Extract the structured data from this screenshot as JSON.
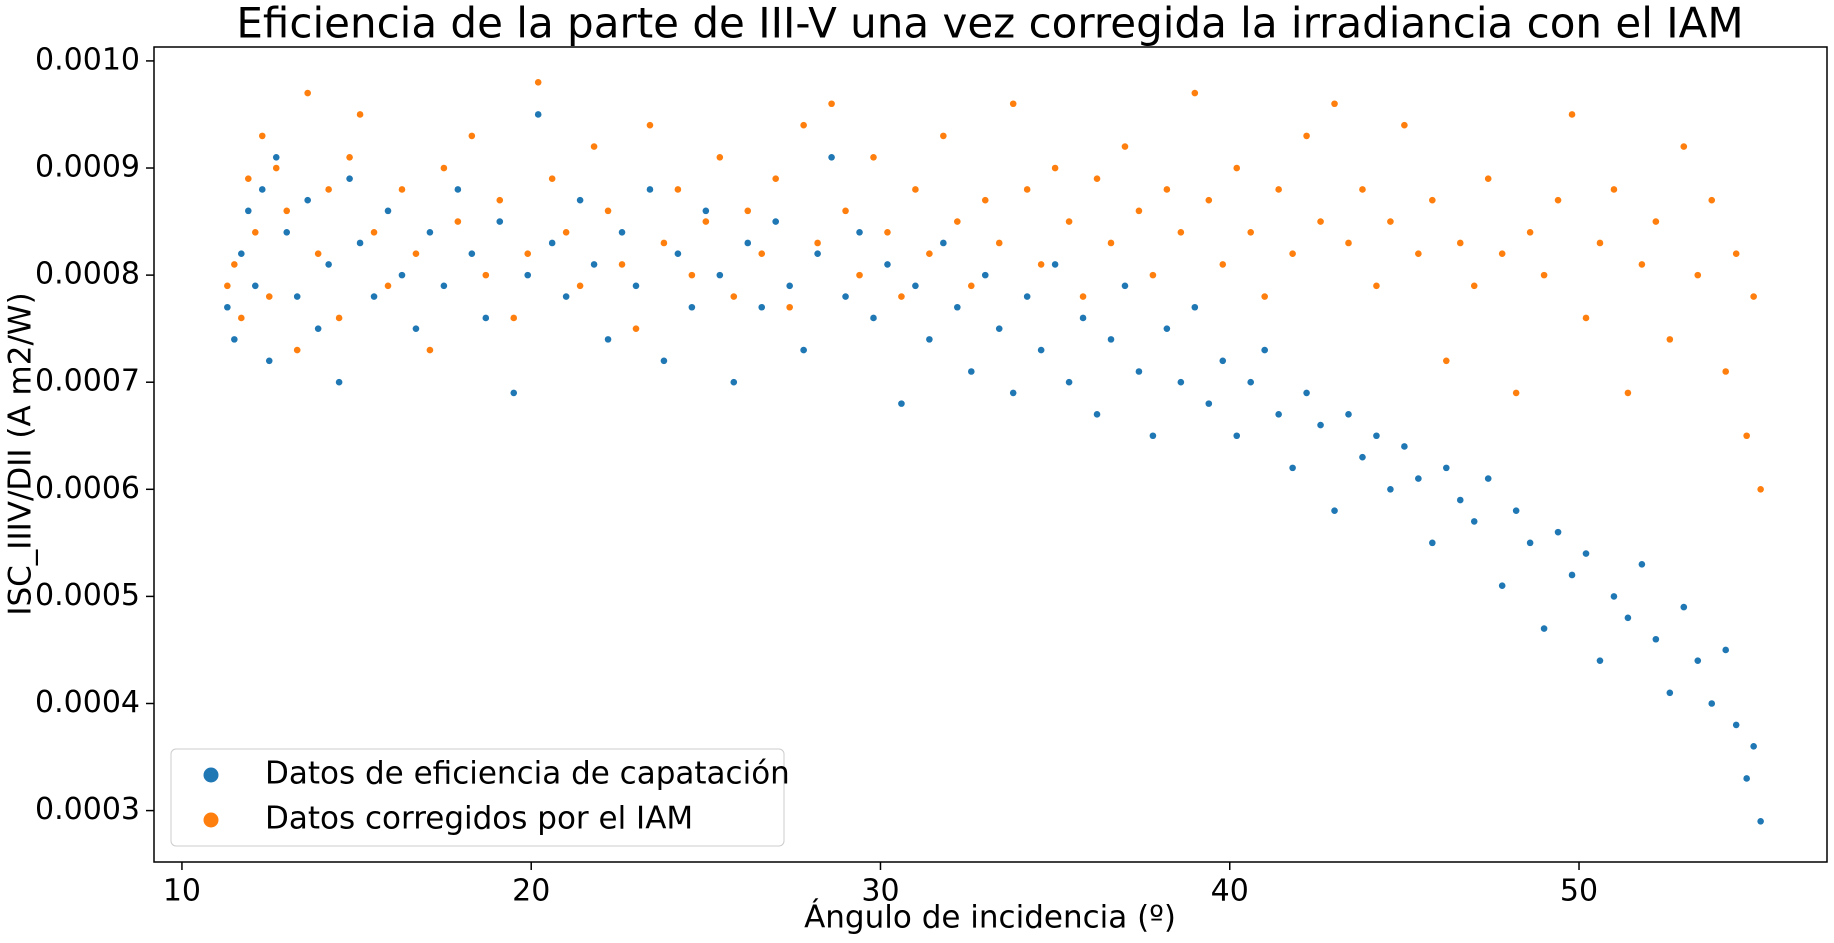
{
  "chart_data": {
    "type": "scatter",
    "title": "Eficiencia de la parte de III-V una vez corregida la irradiancia con el IAM",
    "x_label": "Ángulo de incidencia (º)",
    "y_label": "ISC_IIIV/DII (A m2/W)",
    "xlim": [
      9.2,
      57.1
    ],
    "ylim": [
      0.000252,
      0.001013
    ],
    "xticks": [
      10,
      20,
      30,
      40,
      50
    ],
    "yticks": [
      {
        "value": 0.0003,
        "label": "0.0003"
      },
      {
        "value": 0.0004,
        "label": "0.0004"
      },
      {
        "value": 0.0005,
        "label": "0.0005"
      },
      {
        "value": 0.0006,
        "label": "0.0006"
      },
      {
        "value": 0.0007,
        "label": "0.0007"
      },
      {
        "value": 0.0008,
        "label": "0.0008"
      },
      {
        "value": 0.0009,
        "label": "0.0009"
      },
      {
        "value": 0.001,
        "label": "0.0010"
      }
    ],
    "legend": "lower left",
    "series": [
      {
        "name": "Datos de eficiencia de capatación",
        "color": "#1f77b4",
        "x": [
          11.3,
          11.5,
          11.7,
          11.9,
          12.1,
          12.3,
          12.5,
          12.7,
          13.0,
          13.3,
          13.6,
          13.9,
          14.2,
          14.5,
          14.8,
          15.1,
          15.5,
          15.9,
          16.3,
          16.7,
          17.1,
          17.5,
          17.9,
          18.3,
          18.7,
          19.1,
          19.5,
          19.9,
          20.2,
          20.6,
          21.0,
          21.4,
          21.8,
          22.2,
          22.6,
          23.0,
          23.4,
          23.8,
          24.2,
          24.6,
          25.0,
          25.4,
          25.8,
          26.2,
          26.6,
          27.0,
          27.4,
          27.8,
          28.2,
          28.6,
          29.0,
          29.4,
          29.8,
          30.2,
          30.6,
          31.0,
          31.4,
          31.8,
          32.2,
          32.6,
          33.0,
          33.4,
          33.8,
          34.2,
          34.6,
          35.0,
          35.4,
          35.8,
          36.2,
          36.6,
          37.0,
          37.4,
          37.8,
          38.2,
          38.6,
          39.0,
          39.4,
          39.8,
          40.2,
          40.6,
          41.0,
          41.4,
          41.8,
          42.2,
          42.6,
          43.0,
          43.4,
          43.8,
          44.2,
          44.6,
          45.0,
          45.4,
          45.8,
          46.2,
          46.6,
          47.0,
          47.4,
          47.8,
          48.2,
          48.6,
          49.0,
          49.4,
          49.8,
          50.2,
          50.6,
          51.0,
          51.4,
          51.8,
          52.2,
          52.6,
          53.0,
          53.4,
          53.8,
          54.2,
          54.5,
          54.8,
          55.0,
          55.2
        ],
        "values": [
          0.00077,
          0.00074,
          0.00082,
          0.00086,
          0.00079,
          0.00088,
          0.00072,
          0.00091,
          0.00084,
          0.00078,
          0.00087,
          0.00075,
          0.00081,
          0.0007,
          0.00089,
          0.00083,
          0.00078,
          0.00086,
          0.0008,
          0.00075,
          0.00084,
          0.00079,
          0.00088,
          0.00082,
          0.00076,
          0.00085,
          0.00069,
          0.0008,
          0.00095,
          0.00083,
          0.00078,
          0.00087,
          0.00081,
          0.00074,
          0.00084,
          0.00079,
          0.00088,
          0.00072,
          0.00082,
          0.00077,
          0.00086,
          0.0008,
          0.0007,
          0.00083,
          0.00077,
          0.00085,
          0.00079,
          0.00073,
          0.00082,
          0.00091,
          0.00078,
          0.00084,
          0.00076,
          0.00081,
          0.00068,
          0.00079,
          0.00074,
          0.00083,
          0.00077,
          0.00071,
          0.0008,
          0.00075,
          0.00069,
          0.00078,
          0.00073,
          0.00081,
          0.0007,
          0.00076,
          0.00067,
          0.00074,
          0.00079,
          0.00071,
          0.00065,
          0.00075,
          0.0007,
          0.00077,
          0.00068,
          0.00072,
          0.00065,
          0.0007,
          0.00073,
          0.00067,
          0.00062,
          0.00069,
          0.00066,
          0.00058,
          0.00067,
          0.00063,
          0.00065,
          0.0006,
          0.00064,
          0.00061,
          0.00055,
          0.00062,
          0.00059,
          0.00057,
          0.00061,
          0.00051,
          0.00058,
          0.00055,
          0.00047,
          0.00056,
          0.00052,
          0.00054,
          0.00044,
          0.0005,
          0.00048,
          0.00053,
          0.00046,
          0.00041,
          0.00049,
          0.00044,
          0.0004,
          0.00045,
          0.00038,
          0.00033,
          0.00036,
          0.00029
        ]
      },
      {
        "name": "Datos corregidos por el IAM",
        "color": "#ff7f0e",
        "x": [
          11.3,
          11.5,
          11.7,
          11.9,
          12.1,
          12.3,
          12.5,
          12.7,
          13.0,
          13.3,
          13.6,
          13.9,
          14.2,
          14.5,
          14.8,
          15.1,
          15.5,
          15.9,
          16.3,
          16.7,
          17.1,
          17.5,
          17.9,
          18.3,
          18.7,
          19.1,
          19.5,
          19.9,
          20.2,
          20.6,
          21.0,
          21.4,
          21.8,
          22.2,
          22.6,
          23.0,
          23.4,
          23.8,
          24.2,
          24.6,
          25.0,
          25.4,
          25.8,
          26.2,
          26.6,
          27.0,
          27.4,
          27.8,
          28.2,
          28.6,
          29.0,
          29.4,
          29.8,
          30.2,
          30.6,
          31.0,
          31.4,
          31.8,
          32.2,
          32.6,
          33.0,
          33.4,
          33.8,
          34.2,
          34.6,
          35.0,
          35.4,
          35.8,
          36.2,
          36.6,
          37.0,
          37.4,
          37.8,
          38.2,
          38.6,
          39.0,
          39.4,
          39.8,
          40.2,
          40.6,
          41.0,
          41.4,
          41.8,
          42.2,
          42.6,
          43.0,
          43.4,
          43.8,
          44.2,
          44.6,
          45.0,
          45.4,
          45.8,
          46.2,
          46.6,
          47.0,
          47.4,
          47.8,
          48.2,
          48.6,
          49.0,
          49.4,
          49.8,
          50.2,
          50.6,
          51.0,
          51.4,
          51.8,
          52.2,
          52.6,
          53.0,
          53.4,
          53.8,
          54.2,
          54.5,
          54.8,
          55.0,
          55.2
        ],
        "values": [
          0.00079,
          0.00081,
          0.00076,
          0.00089,
          0.00084,
          0.00093,
          0.00078,
          0.0009,
          0.00086,
          0.00073,
          0.00097,
          0.00082,
          0.00088,
          0.00076,
          0.00091,
          0.00095,
          0.00084,
          0.00079,
          0.00088,
          0.00082,
          0.00073,
          0.0009,
          0.00085,
          0.00093,
          0.0008,
          0.00087,
          0.00076,
          0.00082,
          0.00098,
          0.00089,
          0.00084,
          0.00079,
          0.00092,
          0.00086,
          0.00081,
          0.00075,
          0.00094,
          0.00083,
          0.00088,
          0.0008,
          0.00085,
          0.00091,
          0.00078,
          0.00086,
          0.00082,
          0.00089,
          0.00077,
          0.00094,
          0.00083,
          0.00096,
          0.00086,
          0.0008,
          0.00091,
          0.00084,
          0.00078,
          0.00088,
          0.00082,
          0.00093,
          0.00085,
          0.00079,
          0.00087,
          0.00083,
          0.00096,
          0.00088,
          0.00081,
          0.0009,
          0.00085,
          0.00078,
          0.00089,
          0.00083,
          0.00092,
          0.00086,
          0.0008,
          0.00088,
          0.00084,
          0.00097,
          0.00087,
          0.00081,
          0.0009,
          0.00084,
          0.00078,
          0.00088,
          0.00082,
          0.00093,
          0.00085,
          0.00096,
          0.00083,
          0.00088,
          0.00079,
          0.00085,
          0.00094,
          0.00082,
          0.00087,
          0.00072,
          0.00083,
          0.00079,
          0.00089,
          0.00082,
          0.00069,
          0.00084,
          0.0008,
          0.00087,
          0.00095,
          0.00076,
          0.00083,
          0.00088,
          0.00069,
          0.00081,
          0.00085,
          0.00074,
          0.00092,
          0.0008,
          0.00087,
          0.00071,
          0.00082,
          0.00065,
          0.00078,
          0.0006
        ]
      }
    ]
  }
}
